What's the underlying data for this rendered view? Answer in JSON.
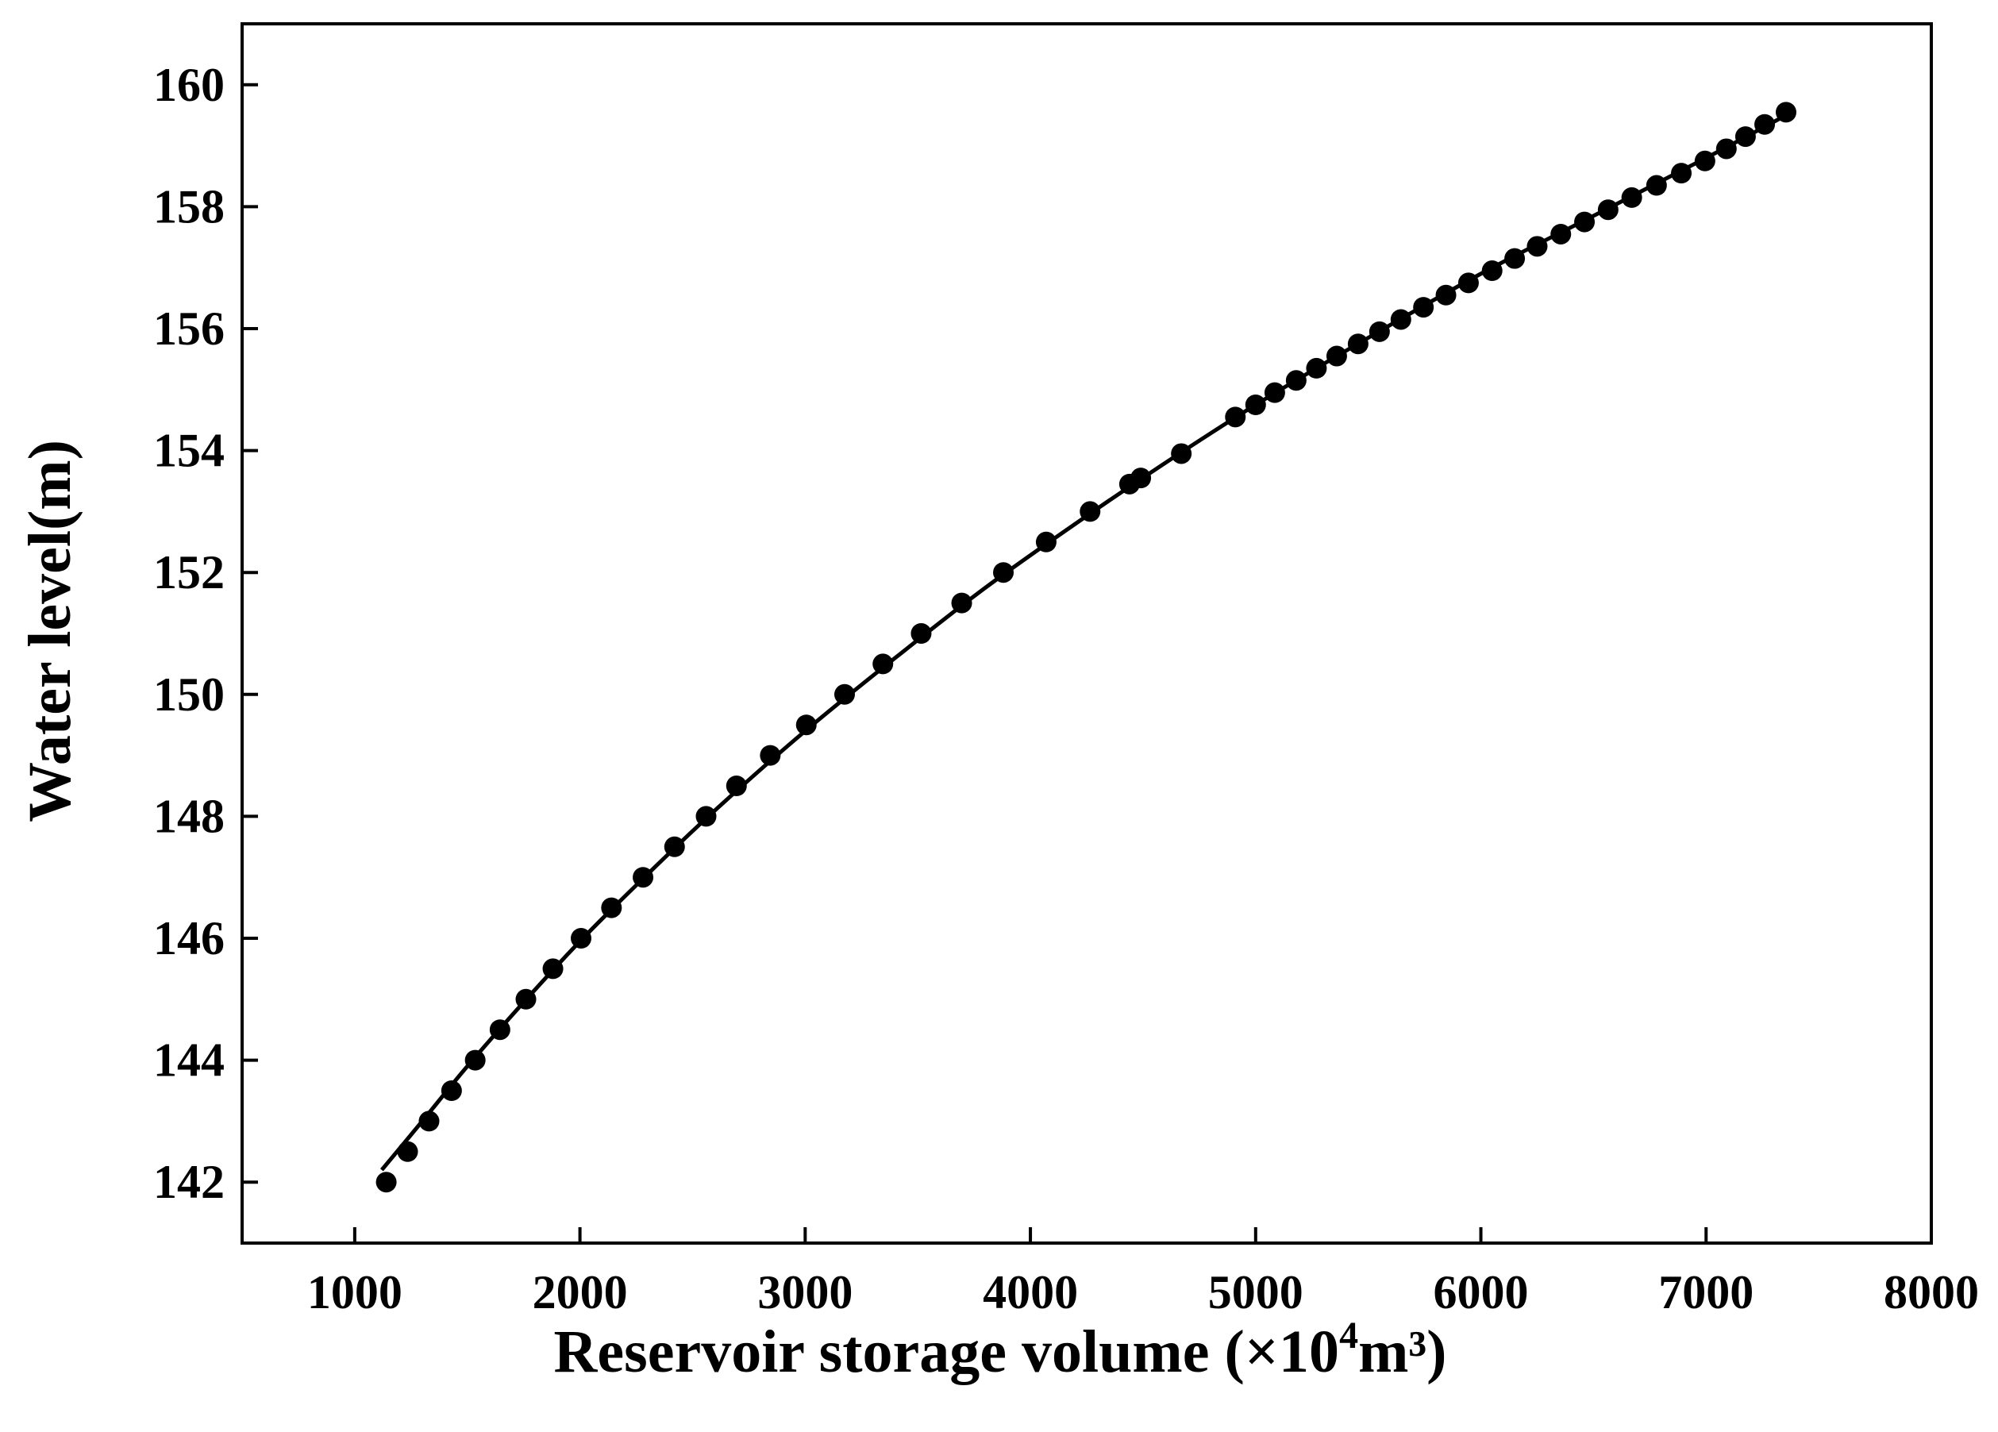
{
  "chart_data": {
    "type": "scatter",
    "xlabel_main": "Reservoir storage volume (×10",
    "xlabel_sup": "4",
    "xlabel_end": "m³)",
    "ylabel": "Water level(m)",
    "xlim": [
      500,
      8000
    ],
    "ylim": [
      141,
      161
    ],
    "xticks": [
      1000,
      2000,
      3000,
      4000,
      5000,
      6000,
      7000,
      8000
    ],
    "yticks": [
      142,
      144,
      146,
      148,
      150,
      152,
      154,
      156,
      158,
      160
    ],
    "grid": false,
    "legend": "none",
    "series": [
      {
        "kind": "points",
        "color": "#000000",
        "x": [
          1140,
          1235,
          1330,
          1430,
          1535,
          1645,
          1760,
          1880,
          2005,
          2140,
          2280,
          2420,
          2560,
          2695,
          2845,
          3005,
          3175,
          3345,
          3515,
          3695,
          3880,
          4070,
          4265,
          4440,
          4490,
          4670,
          4910,
          5000,
          5085,
          5180,
          5270,
          5360,
          5455,
          5550,
          5645,
          5745,
          5845,
          5945,
          6050,
          6150,
          6250,
          6355,
          6460,
          6565,
          6670,
          6780,
          6890,
          6995,
          7090,
          7175,
          7260,
          7355
        ],
        "y": [
          142.0,
          142.5,
          143.0,
          143.5,
          144.0,
          144.5,
          145.0,
          145.5,
          146.0,
          146.5,
          147.0,
          147.5,
          148.0,
          148.5,
          149.0,
          149.5,
          150.0,
          150.5,
          151.0,
          151.5,
          152.0,
          152.5,
          153.0,
          153.45,
          153.55,
          153.95,
          154.55,
          154.75,
          154.95,
          155.15,
          155.35,
          155.55,
          155.75,
          155.95,
          156.15,
          156.35,
          156.55,
          156.75,
          156.95,
          157.15,
          157.35,
          157.55,
          157.75,
          157.95,
          158.15,
          158.35,
          158.55,
          158.75,
          158.95,
          159.15,
          159.35,
          159.55
        ]
      },
      {
        "kind": "fit-line",
        "color": "#000000",
        "x": [
          1120,
          1300,
          1500,
          1750,
          2000,
          2300,
          2600,
          3000,
          3400,
          3800,
          4200,
          4600,
          5000,
          5500,
          6000,
          6500,
          7000,
          7355
        ],
        "y": [
          142.2,
          143.0,
          143.9,
          144.95,
          145.95,
          147.05,
          148.1,
          149.4,
          150.6,
          151.75,
          152.8,
          153.8,
          154.75,
          155.85,
          156.9,
          157.85,
          158.8,
          159.5
        ]
      }
    ]
  }
}
